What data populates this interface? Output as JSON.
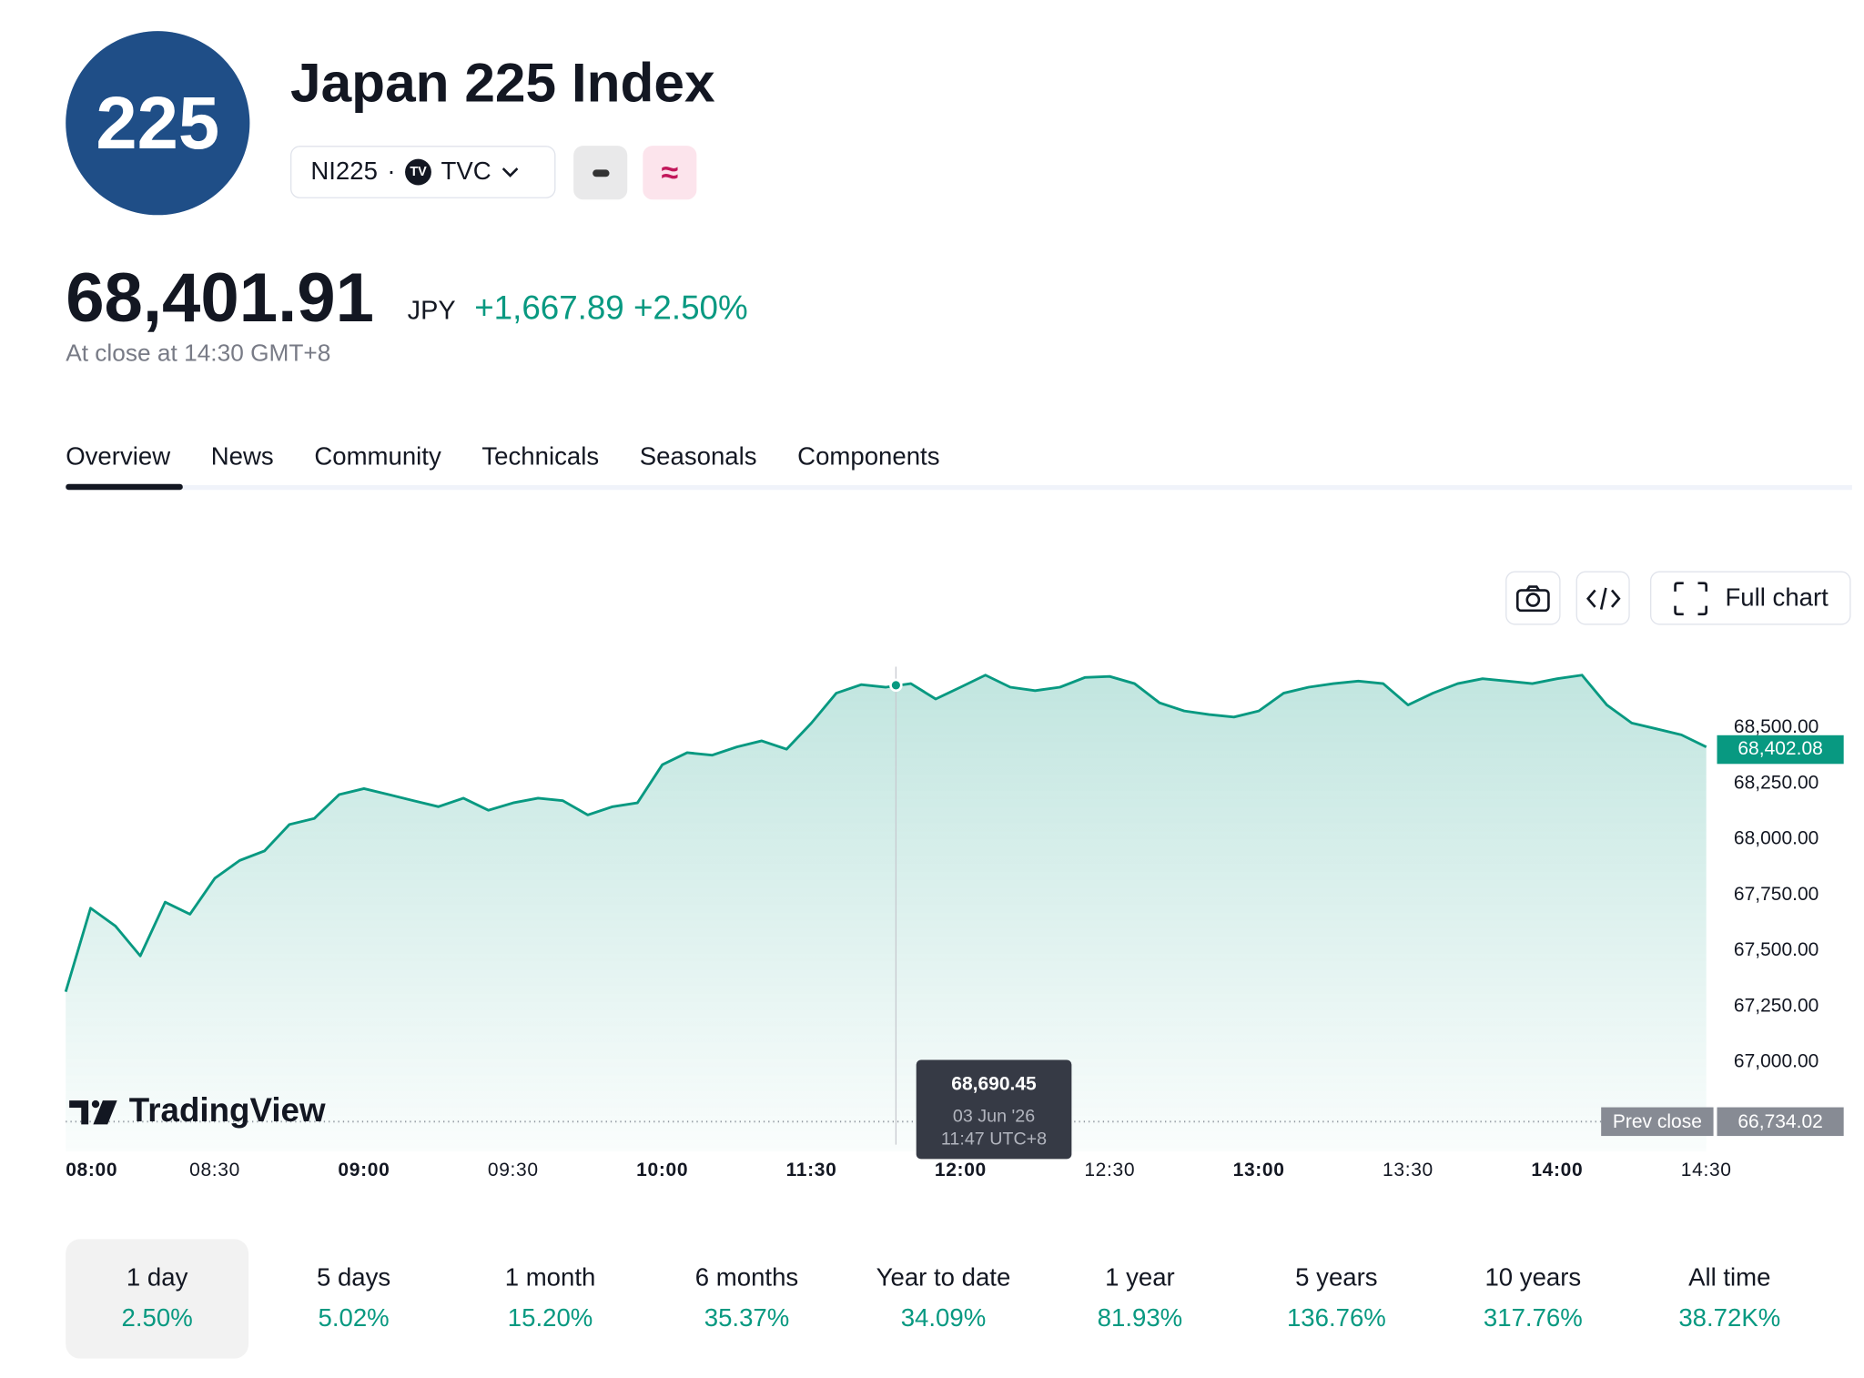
{
  "header": {
    "logo": "225",
    "title": "Japan 225 Index",
    "symbol": "NI225",
    "exchange": "TVC"
  },
  "quote": {
    "price": "68,401.91",
    "currency": "JPY",
    "change": "+1,667.89",
    "change_percent": "+2.50%",
    "status": "At close at 14:30 GMT+8"
  },
  "tabs": [
    "Overview",
    "News",
    "Community",
    "Technicals",
    "Seasonals",
    "Components"
  ],
  "toolbar": {
    "full_chart": "Full chart"
  },
  "chart_data": {
    "type": "area",
    "color": "#089981",
    "watermark": "TradingView",
    "x": [
      "08:00",
      "08:05",
      "08:10",
      "08:15",
      "08:20",
      "08:25",
      "08:30",
      "08:35",
      "08:40",
      "08:45",
      "08:50",
      "08:55",
      "09:00",
      "09:05",
      "09:10",
      "09:15",
      "09:20",
      "09:25",
      "09:30",
      "09:35",
      "09:40",
      "09:45",
      "09:50",
      "09:55",
      "10:00",
      "10:05",
      "10:10",
      "10:15",
      "10:20",
      "10:25",
      "11:30",
      "11:35",
      "11:40",
      "11:45",
      "11:50",
      "11:55",
      "12:00",
      "12:05",
      "12:10",
      "12:15",
      "12:20",
      "12:25",
      "12:30",
      "12:35",
      "12:40",
      "12:45",
      "12:50",
      "12:55",
      "13:00",
      "13:05",
      "13:10",
      "13:15",
      "13:20",
      "13:25",
      "13:30",
      "13:35",
      "13:40",
      "13:45",
      "13:50",
      "13:55",
      "14:00",
      "14:05",
      "14:10",
      "14:15",
      "14:20",
      "14:25",
      "14:30"
    ],
    "values": [
      67316,
      67691,
      67611,
      67477,
      67718,
      67664,
      67825,
      67905,
      67948,
      68066,
      68093,
      68200,
      68227,
      68200,
      68173,
      68146,
      68184,
      68130,
      68163,
      68184,
      68173,
      68109,
      68146,
      68163,
      68334,
      68388,
      68377,
      68414,
      68441,
      68404,
      68521,
      68655,
      68693,
      68682,
      68698,
      68629,
      68682,
      68736,
      68682,
      68666,
      68682,
      68725,
      68730,
      68698,
      68612,
      68575,
      68559,
      68548,
      68575,
      68655,
      68682,
      68698,
      68709,
      68698,
      68602,
      68655,
      68698,
      68720,
      68709,
      68698,
      68720,
      68736,
      68602,
      68521,
      68495,
      68468,
      68414
    ],
    "xticks": [
      "08:00",
      "08:30",
      "09:00",
      "09:30",
      "10:00",
      "11:30",
      "12:00",
      "12:30",
      "13:00",
      "13:30",
      "14:00",
      "14:30"
    ],
    "xtick_bold": [
      true,
      false,
      true,
      false,
      true,
      true,
      true,
      false,
      true,
      false,
      true,
      false
    ],
    "ylim": [
      66600,
      68850
    ],
    "yticks": [
      {
        "value": 67000,
        "label": "67,000.00"
      },
      {
        "value": 67250,
        "label": "67,250.00"
      },
      {
        "value": 67500,
        "label": "67,500.00"
      },
      {
        "value": 67750,
        "label": "67,750.00"
      },
      {
        "value": 68000,
        "label": "68,000.00"
      },
      {
        "value": 68250,
        "label": "68,250.00"
      },
      {
        "value": 68500,
        "label": "68,500.00"
      }
    ],
    "last_value": {
      "value": 68402.08,
      "label": "68,402.08"
    },
    "prev_close": {
      "name": "Prev close",
      "value": 66734.02,
      "label": "66,734.02"
    },
    "tooltip": {
      "value": 68690.45,
      "label": "68,690.45",
      "date": "03 Jun '26",
      "time": "11:47 UTC+8"
    }
  },
  "periods": [
    {
      "label": "1 day",
      "value": "2.50%"
    },
    {
      "label": "5 days",
      "value": "5.02%"
    },
    {
      "label": "1 month",
      "value": "15.20%"
    },
    {
      "label": "6 months",
      "value": "35.37%"
    },
    {
      "label": "Year to date",
      "value": "34.09%"
    },
    {
      "label": "1 year",
      "value": "81.93%"
    },
    {
      "label": "5 years",
      "value": "136.76%"
    },
    {
      "label": "10 years",
      "value": "317.76%"
    },
    {
      "label": "All time",
      "value": "38.72K%"
    }
  ]
}
